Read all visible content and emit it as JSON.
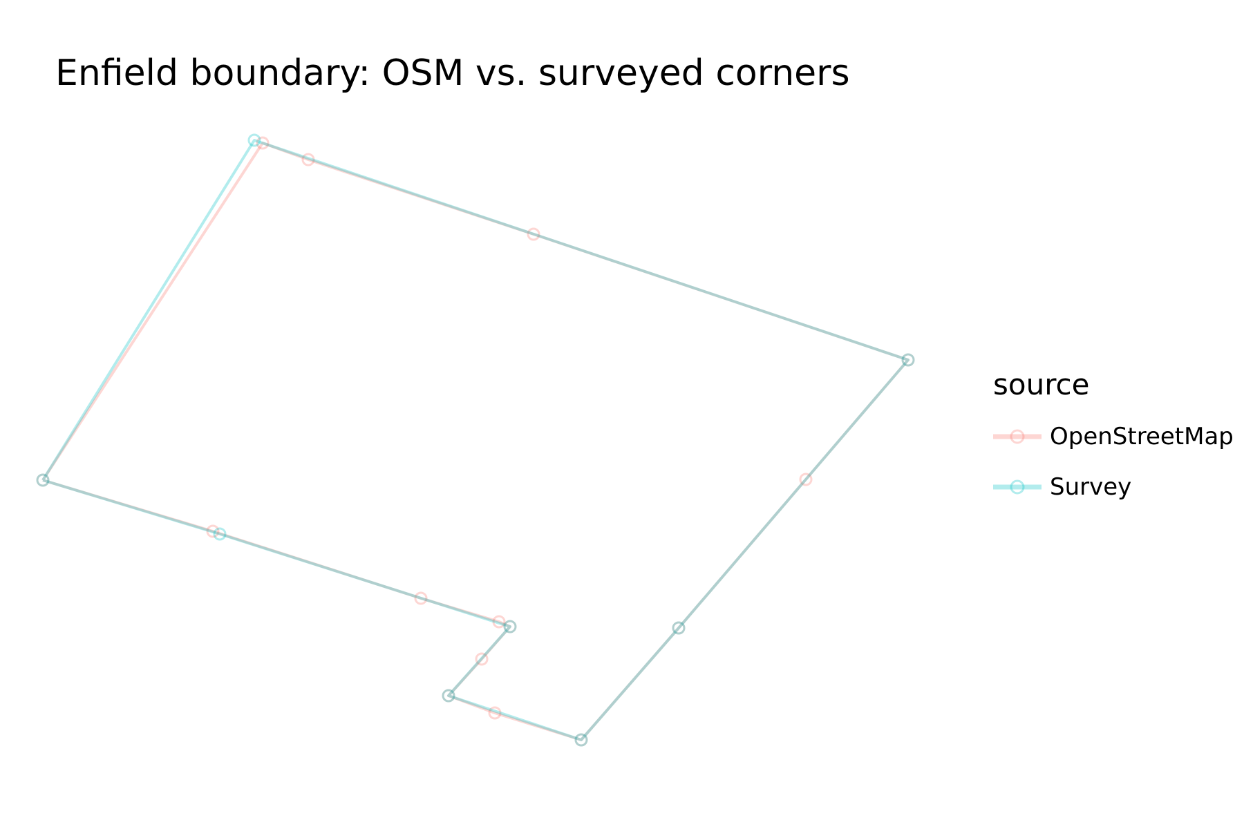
{
  "chart_data": {
    "type": "line",
    "title": "Enfield boundary: OSM vs. surveyed corners",
    "legend_title": "source",
    "legend_position": "right",
    "grid": false,
    "axes_visible": false,
    "series": [
      {
        "name": "OpenStreetMap",
        "color": "#F8766D",
        "closed": true,
        "points": [
          [
            62,
            695
          ],
          [
            308,
            769
          ],
          [
            609,
            866
          ],
          [
            722,
            900
          ],
          [
            738,
            907
          ],
          [
            697,
            954
          ],
          [
            649,
            1007
          ],
          [
            716,
            1032
          ],
          [
            841,
            1071
          ],
          [
            982,
            909
          ],
          [
            1166,
            694
          ],
          [
            1314,
            521
          ],
          [
            772,
            339
          ],
          [
            446,
            231
          ],
          [
            380,
            207
          ]
        ]
      },
      {
        "name": "Survey",
        "color": "#00BFC4",
        "closed": true,
        "points": [
          [
            62,
            695
          ],
          [
            318,
            773
          ],
          [
            738,
            907
          ],
          [
            649,
            1007
          ],
          [
            841,
            1071
          ],
          [
            982,
            909
          ],
          [
            1314,
            521
          ],
          [
            368,
            203
          ]
        ]
      }
    ]
  }
}
